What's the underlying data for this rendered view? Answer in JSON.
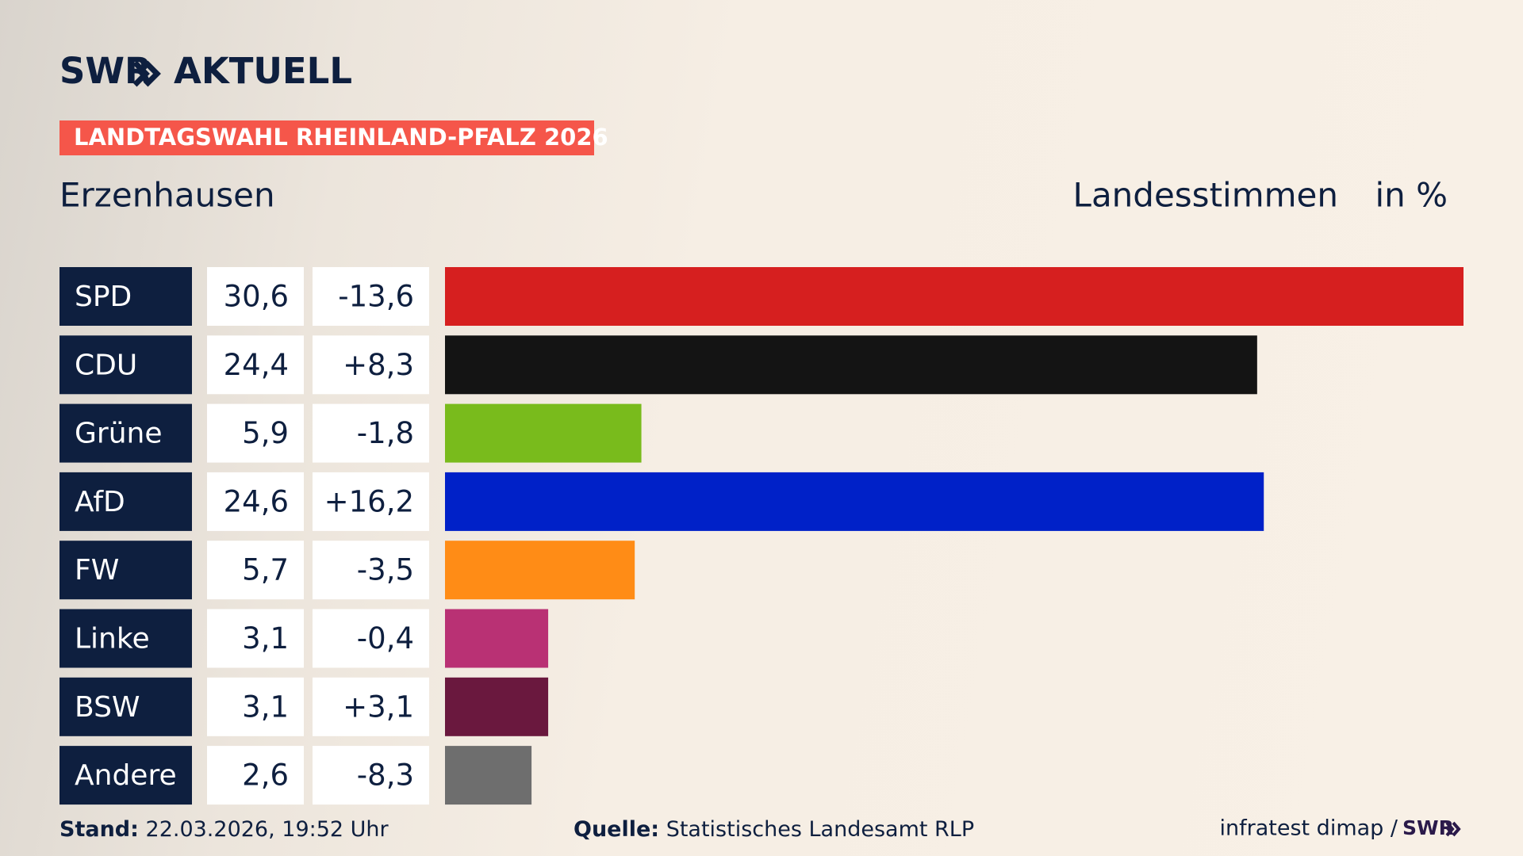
{
  "chart_data": {
    "type": "bar",
    "brand": "SWR",
    "brand_suffix": "AKTUELL",
    "title": "LANDTAGSWAHL RHEINLAND-PFALZ 2026",
    "subtitle": "Erzenhausen",
    "value_heading": "Landesstimmen",
    "unit": "in %",
    "categories": [
      "SPD",
      "CDU",
      "Grüne",
      "AfD",
      "FW",
      "Linke",
      "BSW",
      "Andere"
    ],
    "colors": [
      "#d61f1f",
      "#141414",
      "#79bb1c",
      "#0021c8",
      "#ff8c16",
      "#b93174",
      "#6a183e",
      "#6e6e6e"
    ],
    "values": [
      30.6,
      24.4,
      5.9,
      24.6,
      5.7,
      3.1,
      3.1,
      2.6
    ],
    "value_labels": [
      "30,6",
      "24,4",
      "5,9",
      "24,6",
      "5,7",
      "3,1",
      "3,1",
      "2,6"
    ],
    "changes": [
      "-13,6",
      "+8,3",
      "-1,8",
      "+16,2",
      "-3,5",
      "-0,4",
      "+3,1",
      "-8,3"
    ],
    "footer": {
      "stand_label": "Stand:",
      "stand": "22.03.2026, 19:52 Uhr",
      "source_label": "Quelle:",
      "source": "Statistisches Landesamt RLP",
      "credit": "infratest dimap /",
      "credit_brand": "SWR"
    }
  }
}
